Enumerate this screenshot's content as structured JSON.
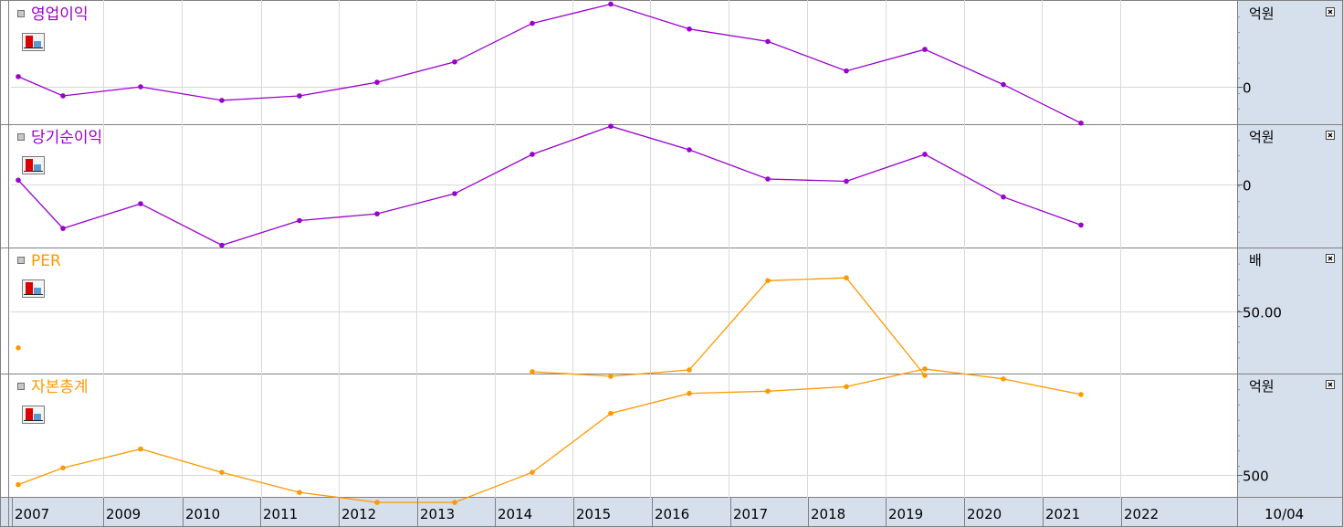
{
  "x_axis": {
    "labels": [
      "2007",
      "2009",
      "2010",
      "2011",
      "2012",
      "2013",
      "2014",
      "2015",
      "2016",
      "2017",
      "2018",
      "2019",
      "2020",
      "2021",
      "2022"
    ],
    "date_label": "10/04"
  },
  "chart_data": [
    {
      "type": "line",
      "title": "영업이익",
      "unit": "억원",
      "ticks": [
        {
          "value": 0,
          "label": "0"
        }
      ],
      "ylim": [
        -33,
        75
      ],
      "x": [
        "2007",
        "2008",
        "2009",
        "2010",
        "2011",
        "2012",
        "2013",
        "2014",
        "2015",
        "2016",
        "2017",
        "2018",
        "2019",
        "2020",
        "2021"
      ],
      "values": [
        9,
        -8,
        0,
        -12,
        -8,
        4,
        22,
        56,
        73,
        51,
        40,
        14,
        33,
        2,
        -32
      ],
      "color": "#9900cc"
    },
    {
      "type": "line",
      "title": "당기순이익",
      "unit": "억원",
      "ticks": [
        {
          "value": 0,
          "label": "0"
        }
      ],
      "ylim": [
        -56,
        53
      ],
      "x": [
        "2007",
        "2008",
        "2009",
        "2010",
        "2011",
        "2012",
        "2013",
        "2014",
        "2015",
        "2016",
        "2017",
        "2018",
        "2019",
        "2020",
        "2021"
      ],
      "values": [
        4,
        -39,
        -17,
        -54,
        -32,
        -26,
        -8,
        27,
        52,
        31,
        5,
        3,
        27,
        -11,
        -36
      ],
      "color": "#9900cc"
    },
    {
      "type": "line",
      "title": "PER",
      "unit": "배",
      "ticks": [
        {
          "value": 50,
          "label": "50.00"
        }
      ],
      "ylim": [
        -18,
        118
      ],
      "x": [
        "2007",
        "2014",
        "2015",
        "2016",
        "2017",
        "2018",
        "2019"
      ],
      "values": [
        10,
        -16,
        -21,
        -14,
        83,
        86,
        -20
      ],
      "segments": [
        [
          0,
          0
        ],
        [
          1,
          6
        ]
      ],
      "color": "#ff9900"
    },
    {
      "type": "line",
      "title": "자본총계",
      "unit": "억원",
      "ticks": [
        {
          "value": 500,
          "label": "500"
        }
      ],
      "ylim": [
        300,
        1400
      ],
      "x": [
        "2007",
        "2008",
        "2009",
        "2010",
        "2011",
        "2012",
        "2013",
        "2014",
        "2015",
        "2016",
        "2017",
        "2018",
        "2019",
        "2020",
        "2021"
      ],
      "values": [
        410,
        560,
        730,
        520,
        340,
        250,
        250,
        520,
        1050,
        1230,
        1250,
        1290,
        1450,
        1360,
        1220
      ],
      "color": "#ff9900"
    }
  ]
}
